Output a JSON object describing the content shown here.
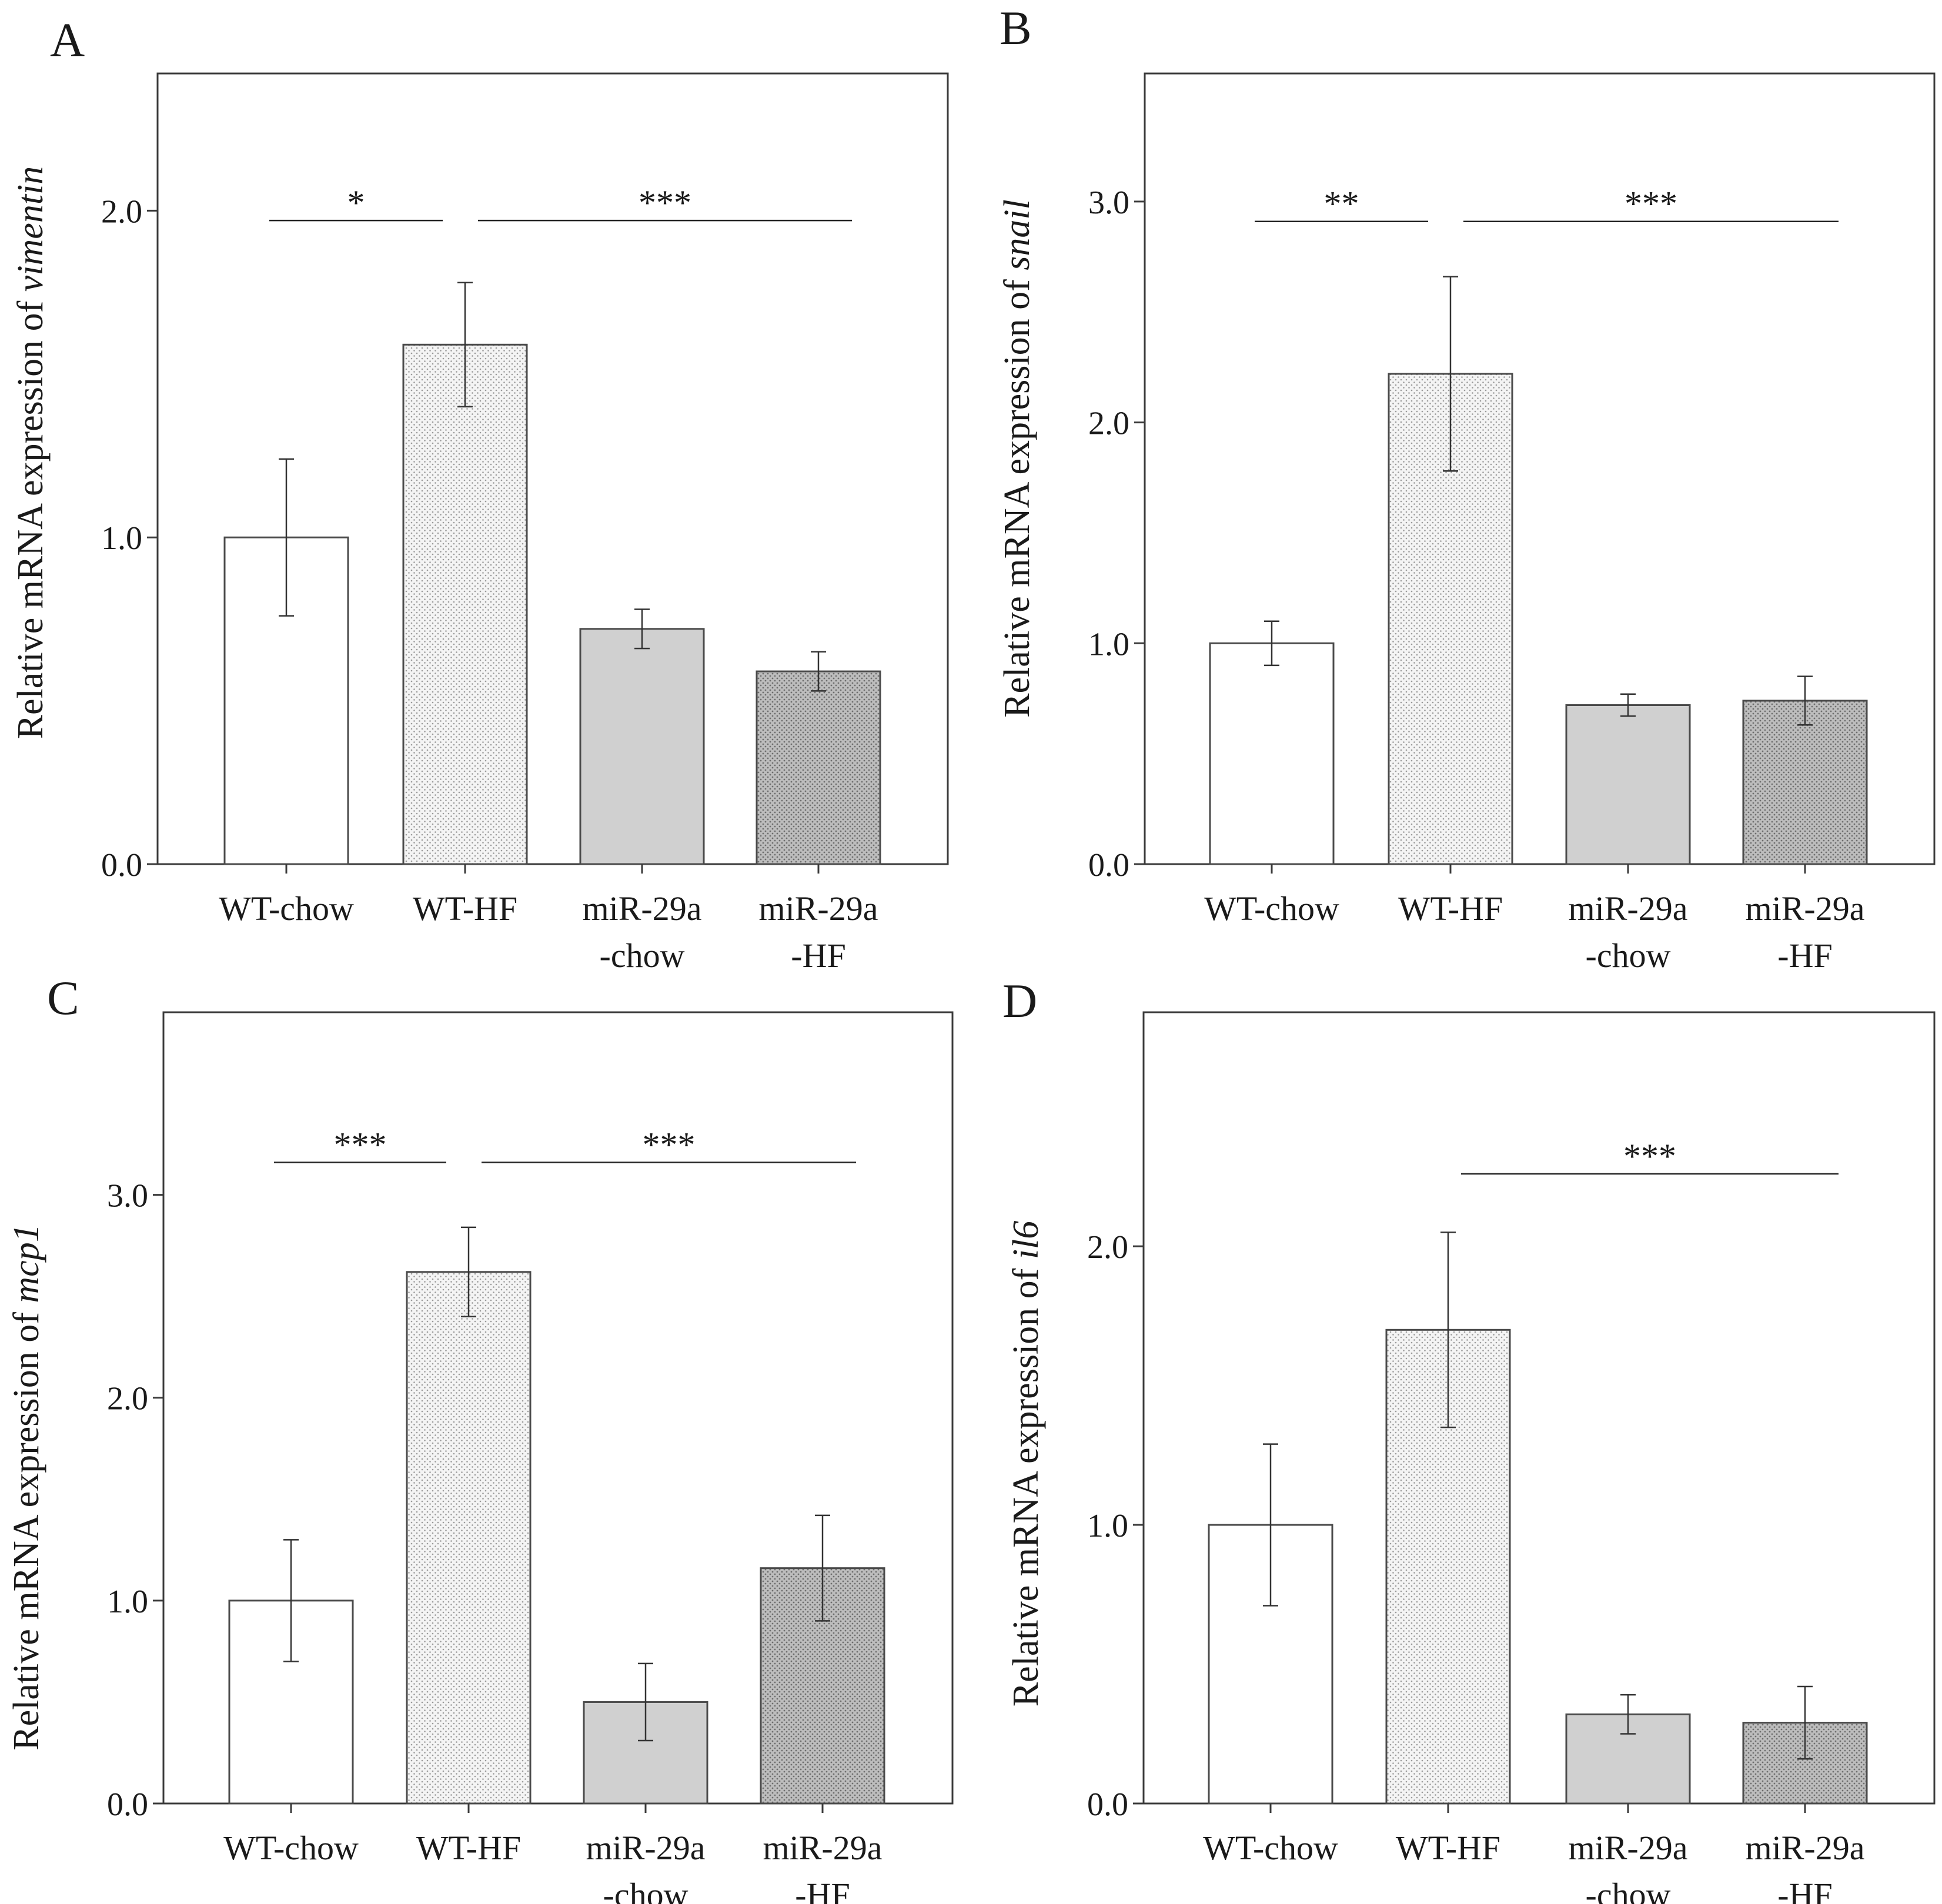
{
  "chart_data": [
    {
      "type": "bar",
      "panel_label": "A",
      "ylabel_prefix": "Relative mRNA expression of ",
      "ylabel_gene": "vimentin",
      "ylim": [
        0,
        2.42
      ],
      "yticks": [
        0.0,
        1.0,
        2.0
      ],
      "ytick_labels": [
        "0.0",
        "1.0",
        "2.0"
      ],
      "categories": [
        [
          "WT-chow"
        ],
        [
          "WT-HF"
        ],
        [
          "miR-29a",
          "-chow"
        ],
        [
          "miR-29a",
          "-HF"
        ]
      ],
      "values": [
        1.0,
        1.59,
        0.72,
        0.59
      ],
      "errors": [
        0.24,
        0.19,
        0.06,
        0.06
      ],
      "significance": [
        {
          "from": 0,
          "to": 1,
          "label": "*",
          "y": 1.97
        },
        {
          "from": 1,
          "to": 3,
          "label": "***",
          "y": 1.97
        }
      ]
    },
    {
      "type": "bar",
      "panel_label": "B",
      "ylabel_prefix": "Relative mRNA expression of ",
      "ylabel_gene": "snail",
      "ylim": [
        0,
        3.58
      ],
      "yticks": [
        0.0,
        1.0,
        2.0,
        3.0
      ],
      "ytick_labels": [
        "0.0",
        "1.0",
        "2.0",
        "3.0"
      ],
      "categories": [
        [
          "WT-chow"
        ],
        [
          "WT-HF"
        ],
        [
          "miR-29a",
          "-chow"
        ],
        [
          "miR-29a",
          "-HF"
        ]
      ],
      "values": [
        1.0,
        2.22,
        0.72,
        0.74
      ],
      "errors": [
        0.1,
        0.44,
        0.05,
        0.11
      ],
      "significance": [
        {
          "from": 0,
          "to": 1,
          "label": "**",
          "y": 2.91
        },
        {
          "from": 1,
          "to": 3,
          "label": "***",
          "y": 2.91
        }
      ]
    },
    {
      "type": "bar",
      "panel_label": "C",
      "ylabel_prefix": "Relative mRNA expression of ",
      "ylabel_gene": "mcp1",
      "ylim": [
        0,
        3.9
      ],
      "yticks": [
        0.0,
        1.0,
        2.0,
        3.0
      ],
      "ytick_labels": [
        "0.0",
        "1.0",
        "2.0",
        "3.0"
      ],
      "categories": [
        [
          "WT-chow"
        ],
        [
          "WT-HF"
        ],
        [
          "miR-29a",
          "-chow"
        ],
        [
          "miR-29a",
          "-HF"
        ]
      ],
      "values": [
        1.0,
        2.62,
        0.5,
        1.16
      ],
      "errors": [
        0.3,
        0.22,
        0.19,
        0.26
      ],
      "significance": [
        {
          "from": 0,
          "to": 1,
          "label": "***",
          "y": 3.16
        },
        {
          "from": 1,
          "to": 3,
          "label": "***",
          "y": 3.16
        }
      ]
    },
    {
      "type": "bar",
      "panel_label": "D",
      "ylabel_prefix": "Relative mRNA expression of ",
      "ylabel_gene": "il6",
      "ylim": [
        0,
        2.84
      ],
      "yticks": [
        0.0,
        1.0,
        2.0
      ],
      "ytick_labels": [
        "0.0",
        "1.0",
        "2.0"
      ],
      "categories": [
        [
          "WT-chow"
        ],
        [
          "WT-HF"
        ],
        [
          "miR-29a",
          "-chow"
        ],
        [
          "miR-29a",
          "-HF"
        ]
      ],
      "values": [
        1.0,
        1.7,
        0.32,
        0.29
      ],
      "errors": [
        0.29,
        0.35,
        0.07,
        0.13
      ],
      "significance": [
        {
          "from": 1,
          "to": 3,
          "label": "***",
          "y": 2.26
        }
      ]
    }
  ],
  "colors": {
    "axis": "#3a3a3a",
    "bar_stroke": "#4a4a4a",
    "wt_chow_fill": "#ffffff",
    "wt_hf_fill": "#f4f4f4",
    "wt_hf_dot": "#9a9a9a",
    "mir_chow_fill": "#d0d0d0",
    "mir_hf_fill": "#bdbdbd",
    "mir_hf_dot": "#6e6e6e"
  }
}
